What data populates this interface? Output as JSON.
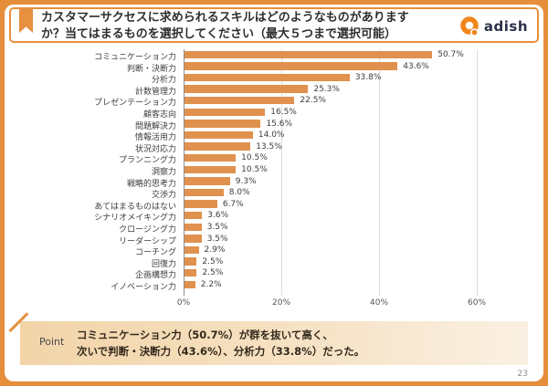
{
  "header": {
    "title_line1": "カスタマーサクセスに求められるスキルはどのようなものがあります",
    "title_line2": "か？当てはまるものを選択してください（最大５つまで選択可能）",
    "logo_text": "adish"
  },
  "chart_data": {
    "type": "bar",
    "orientation": "horizontal",
    "title": "",
    "xlabel": "",
    "ylabel": "",
    "categories": [
      "コミュニケーション力",
      "判断・決断力",
      "分析力",
      "計数管理力",
      "プレゼンテーション力",
      "顧客志向",
      "問題解決力",
      "情報活用力",
      "状況対応力",
      "プランニング力",
      "洞察力",
      "戦略的思考力",
      "交渉力",
      "あてはまるものはない",
      "シナリオメイキング力",
      "クロージング力",
      "リーダーシップ",
      "コーチング",
      "回復力",
      "企画構想力",
      "イノベーション力"
    ],
    "values": [
      50.7,
      43.6,
      33.8,
      25.3,
      22.5,
      16.5,
      15.6,
      14.0,
      13.5,
      10.5,
      10.5,
      9.3,
      8.0,
      6.7,
      3.6,
      3.5,
      3.5,
      2.9,
      2.5,
      2.5,
      2.2
    ],
    "value_labels": [
      "50.7%",
      "43.6%",
      "33.8%",
      "25.3%",
      "22.5%",
      "16.5%",
      "15.6%",
      "14.0%",
      "13.5%",
      "10.5%",
      "10.5%",
      "9.3%",
      "8.0%",
      "6.7%",
      "3.6%",
      "3.5%",
      "3.5%",
      "2.9%",
      "2.5%",
      "2.5%",
      "2.2%"
    ],
    "x_ticks": [
      0,
      20,
      40,
      60
    ],
    "x_tick_labels": [
      "0%",
      "20%",
      "40%",
      "60%"
    ],
    "xlim": [
      0,
      68
    ],
    "grid": true,
    "legend_position": "none",
    "bar_color": "#E0914E"
  },
  "point": {
    "label": "Point",
    "line1": "コミュニケーション力（50.7%）が群を抜いて高く、",
    "line2": "次いで判断・決断力（43.6%）、分析力（33.8%）だった。"
  },
  "footer": {
    "page_number": "23"
  },
  "colors": {
    "frame": "#E78E3C",
    "bar": "#E0914E",
    "logo_orange": "#F08519",
    "logo_text": "#2B3147",
    "point_bg_left": "#F2D4A8",
    "point_bg_right": "#FAF0E2"
  }
}
